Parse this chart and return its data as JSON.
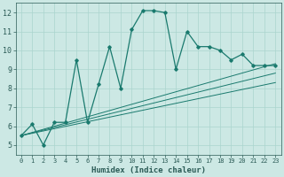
{
  "xlabel": "Humidex (Indice chaleur)",
  "bg_color": "#cce8e4",
  "line_color": "#1a7a6e",
  "xlim": [
    -0.5,
    23.5
  ],
  "ylim": [
    4.5,
    12.5
  ],
  "xticks": [
    0,
    1,
    2,
    3,
    4,
    5,
    6,
    7,
    8,
    9,
    10,
    11,
    12,
    13,
    14,
    15,
    16,
    17,
    18,
    19,
    20,
    21,
    22,
    23
  ],
  "yticks": [
    5,
    6,
    7,
    8,
    9,
    10,
    11,
    12
  ],
  "main_x": [
    0,
    1,
    2,
    3,
    4,
    5,
    6,
    7,
    8,
    9,
    10,
    11,
    12,
    13,
    14,
    15,
    16,
    17,
    18,
    19,
    20,
    21,
    22,
    23
  ],
  "main_y": [
    5.5,
    6.1,
    5.0,
    6.2,
    6.2,
    9.5,
    6.2,
    8.2,
    10.2,
    8.0,
    11.1,
    12.1,
    12.1,
    12.0,
    9.0,
    11.0,
    10.2,
    10.2,
    10.0,
    9.5,
    9.8,
    9.2,
    9.2,
    9.2
  ],
  "ref_lines": [
    {
      "x": [
        0,
        23
      ],
      "y": [
        5.5,
        9.3
      ]
    },
    {
      "x": [
        0,
        23
      ],
      "y": [
        5.5,
        8.8
      ]
    },
    {
      "x": [
        0,
        23
      ],
      "y": [
        5.5,
        8.3
      ]
    }
  ],
  "grid_color": "#aad4ce",
  "tick_color": "#2a5a55",
  "xlabel_fontsize": 6.5,
  "tick_fontsize_x": 5.0,
  "tick_fontsize_y": 6.0
}
